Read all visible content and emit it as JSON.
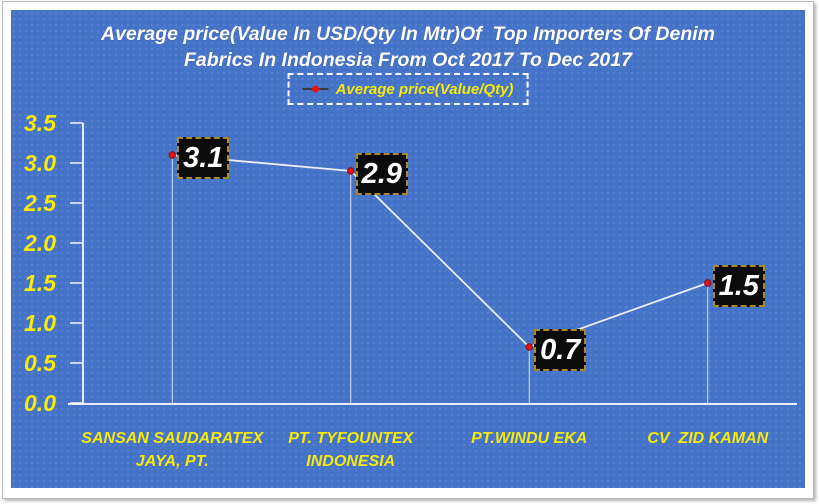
{
  "chart_data": {
    "type": "line",
    "title": "Average price(Value In USD/Qty In Mtr)Of  Top Importers Of Denim Fabrics In Indonesia From Oct 2017 To Dec 2017",
    "title_lines": [
      "Average price(Value In USD/Qty In Mtr)Of  Top Importers Of Denim",
      "Fabrics In Indonesia From Oct 2017 To Dec 2017"
    ],
    "legend": "Average price(Value/Qty)",
    "legend_position": "top-center",
    "categories": [
      "SANSAN SAUDARATEX JAYA, PT.",
      "PT. TYFOUNTEX INDONESIA",
      "PT.WINDU EKA",
      "CV  ZID KAMAN"
    ],
    "category_lines": [
      [
        "SANSAN SAUDARATEX",
        "JAYA, PT."
      ],
      [
        "PT. TYFOUNTEX",
        "INDONESIA"
      ],
      [
        "PT.WINDU EKA"
      ],
      [
        "CV  ZID KAMAN"
      ]
    ],
    "series": [
      {
        "name": "Average price(Value/Qty)",
        "values": [
          3.1,
          2.9,
          0.7,
          1.5
        ]
      }
    ],
    "data_labels": [
      "3.1",
      "2.9",
      "0.7",
      "1.5"
    ],
    "xlabel": "",
    "ylabel": "",
    "ylim": [
      0,
      3.5
    ],
    "ytick_step": 0.5,
    "yticks": [
      "3.5",
      "3.0",
      "2.5",
      "2.0",
      "1.5",
      "1.0",
      "0.5",
      "0.0"
    ],
    "grid": false,
    "marker_style": "red-dot-with-drop-line",
    "colors": {
      "plot_background": "#4573c8",
      "title": "#ffffff",
      "axis_line": "#ffffff",
      "tick_label": "#f7e908",
      "category_label": "#f7e908",
      "series_line": "#e9eef7",
      "drop_line": "#d9e2f3",
      "marker": "#e81414",
      "marker_border": "#7a1414",
      "data_label_bg": "#0b0b0b",
      "data_label_text": "#ffffff",
      "data_label_border": "#aa8a26",
      "legend_text": "#f7e908",
      "legend_border": "#ffffff",
      "legend_marker_line": "#3c3c3c"
    }
  }
}
